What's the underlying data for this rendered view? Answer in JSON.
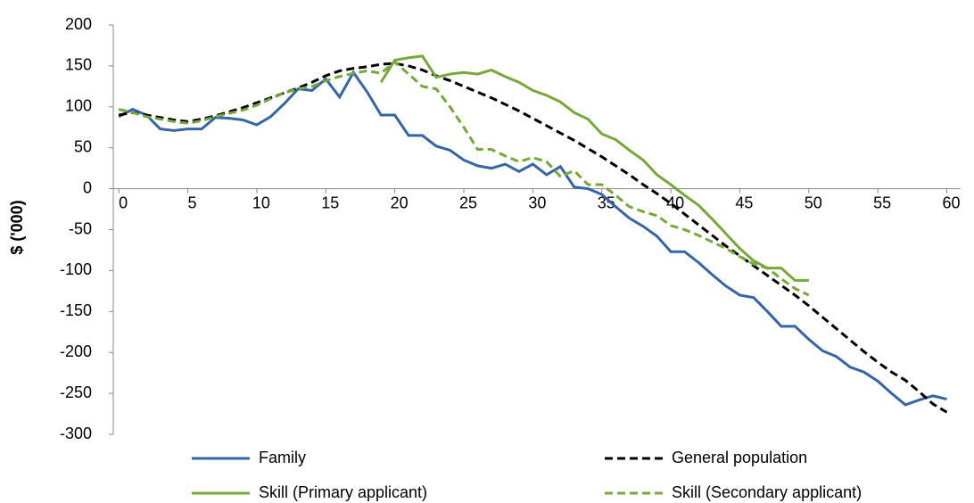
{
  "chart_data": {
    "type": "line",
    "ylabel": "$ ('000)",
    "x": [
      0,
      1,
      2,
      3,
      4,
      5,
      6,
      7,
      8,
      9,
      10,
      11,
      12,
      13,
      14,
      15,
      16,
      17,
      18,
      19,
      20,
      21,
      22,
      23,
      24,
      25,
      26,
      27,
      28,
      29,
      30,
      31,
      32,
      33,
      34,
      35,
      36,
      37,
      38,
      39,
      40,
      41,
      42,
      43,
      44,
      45,
      46,
      47,
      48,
      49,
      50,
      51,
      52,
      53,
      54,
      55,
      56,
      57,
      58,
      59,
      60
    ],
    "xlim": [
      -0.4,
      61
    ],
    "xticks": [
      0,
      5,
      10,
      15,
      20,
      25,
      30,
      35,
      40,
      45,
      50,
      55,
      60
    ],
    "ylim": [
      -300,
      200
    ],
    "yticks": [
      -300,
      -250,
      -200,
      -150,
      -100,
      -50,
      0,
      50,
      100,
      150,
      200
    ],
    "grid": false,
    "legend": "bottom",
    "series": [
      {
        "name": "Family",
        "color": "#3565a5",
        "dash": false,
        "values": [
          88,
          97,
          90,
          73,
          71,
          73,
          73,
          87,
          86,
          84,
          78,
          88,
          104,
          122,
          120,
          134,
          112,
          142,
          118,
          90,
          90,
          65,
          65,
          52,
          47,
          35,
          28,
          25,
          30,
          21,
          30,
          17,
          27,
          2,
          0,
          -7,
          -22,
          -36,
          -46,
          -58,
          -77,
          -77,
          -90,
          -105,
          -119,
          -130,
          -133,
          -150,
          -168,
          -168,
          -184,
          -198,
          -205,
          -218,
          -224,
          -235,
          -250,
          -264,
          -258,
          -253,
          -257
        ]
      },
      {
        "name": "General population",
        "color": "#000000",
        "dash": true,
        "values": [
          90,
          93,
          90,
          87,
          84,
          82,
          85,
          89,
          94,
          99,
          105,
          111,
          117,
          123,
          130,
          138,
          144,
          147,
          149,
          152,
          153,
          150,
          145,
          138,
          132,
          125,
          118,
          111,
          103,
          95,
          86,
          77,
          68,
          59,
          49,
          39,
          28,
          17,
          5,
          -6,
          -18,
          -31,
          -44,
          -57,
          -70,
          -82,
          -94,
          -106,
          -118,
          -130,
          -143,
          -157,
          -171,
          -185,
          -199,
          -212,
          -224,
          -234,
          -248,
          -263,
          -273
        ]
      },
      {
        "name": "Skill (Primary applicant)",
        "color": "#77a83a",
        "dash": false,
        "values": [
          null,
          null,
          null,
          null,
          null,
          null,
          null,
          null,
          null,
          null,
          null,
          null,
          null,
          null,
          null,
          null,
          null,
          null,
          null,
          130,
          157,
          160,
          162,
          136,
          140,
          142,
          140,
          145,
          137,
          130,
          120,
          114,
          106,
          93,
          85,
          67,
          60,
          47,
          35,
          17,
          5,
          -8,
          -20,
          -37,
          -55,
          -73,
          -88,
          -97,
          -97,
          -112,
          -112,
          null,
          null,
          null,
          null,
          null,
          null,
          null,
          null,
          null,
          null
        ]
      },
      {
        "name": "Skill (Secondary applicant)",
        "color": "#77a83a",
        "dash": true,
        "values": [
          97,
          93,
          88,
          85,
          82,
          80,
          83,
          88,
          92,
          96,
          102,
          110,
          117,
          122,
          125,
          132,
          137,
          141,
          144,
          141,
          155,
          140,
          125,
          122,
          100,
          75,
          48,
          48,
          40,
          33,
          38,
          33,
          15,
          22,
          5,
          5,
          -8,
          -22,
          -28,
          -33,
          -45,
          -50,
          -57,
          -65,
          -73,
          -83,
          -92,
          -97,
          -110,
          -122,
          -130,
          null,
          null,
          null,
          null,
          null,
          null,
          null,
          null,
          null,
          null
        ]
      }
    ]
  }
}
